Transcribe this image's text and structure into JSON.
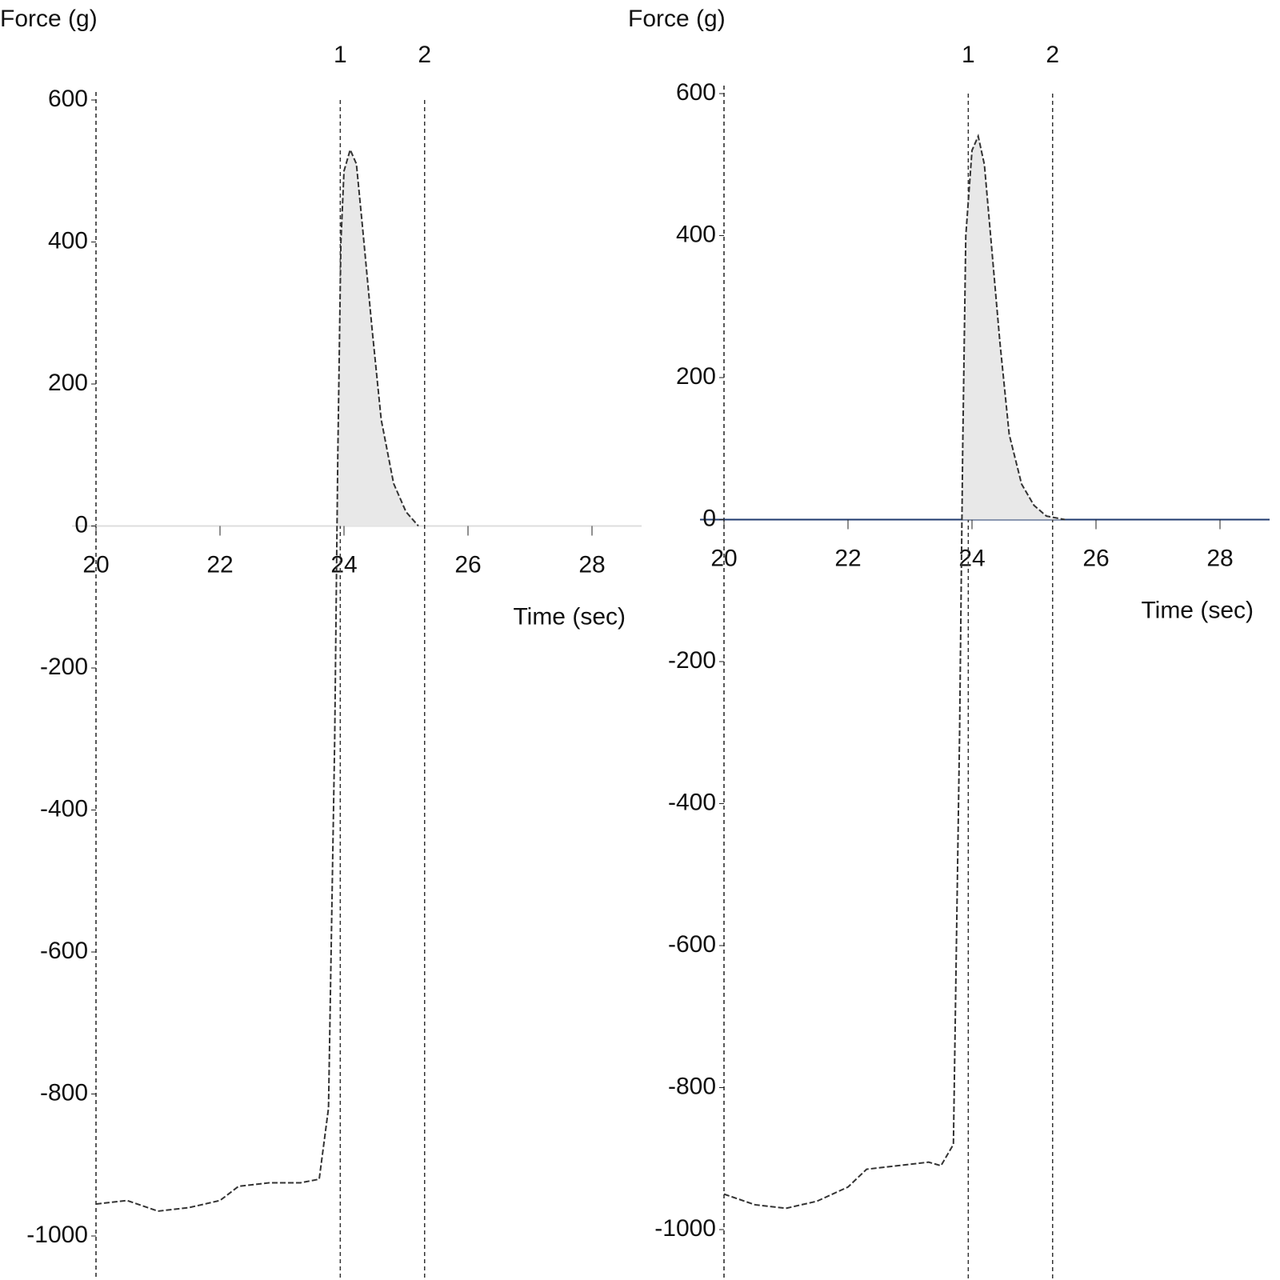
{
  "chart_data": [
    {
      "type": "line",
      "y_label": "Force (g)",
      "x_label": "Time (sec)",
      "xlim": [
        20,
        28.8
      ],
      "ylim": [
        -1000,
        600
      ],
      "xticks": [
        20,
        22,
        24,
        26,
        28
      ],
      "yticks": [
        600,
        400,
        200,
        0,
        -200,
        -400,
        -600,
        -800,
        -1000
      ],
      "x": [
        20,
        20.5,
        21,
        21.5,
        22,
        22.3,
        22.8,
        23.3,
        23.6,
        23.75,
        23.85,
        23.9,
        23.95,
        24.0,
        24.1,
        24.2,
        24.3,
        24.45,
        24.6,
        24.8,
        25.0,
        25.2
      ],
      "series": [
        {
          "color": "#333333",
          "fill": "#e8e8e8",
          "values": [
            -955,
            -950,
            -965,
            -960,
            -950,
            -930,
            -925,
            -925,
            -920,
            -820,
            -300,
            100,
            400,
            500,
            530,
            510,
            420,
            280,
            150,
            60,
            20,
            0
          ]
        }
      ],
      "markers": {
        "x": [
          23.94,
          25.3
        ],
        "labels": [
          "1",
          "2"
        ]
      }
    },
    {
      "type": "line",
      "y_label": "Force (g)",
      "x_label": "Time (sec)",
      "xlim": [
        20,
        28.8
      ],
      "ylim": [
        -1000,
        600
      ],
      "xticks": [
        20,
        22,
        24,
        26,
        28
      ],
      "yticks": [
        600,
        400,
        200,
        0,
        -200,
        -400,
        -600,
        -800,
        -1000
      ],
      "x": [
        20,
        20.5,
        21,
        21.5,
        22,
        22.3,
        22.8,
        23.3,
        23.5,
        23.7,
        23.8,
        23.85,
        23.9,
        24.0,
        24.1,
        24.2,
        24.3,
        24.45,
        24.6,
        24.8,
        25.0,
        25.2,
        25.5
      ],
      "series": [
        {
          "color": "#333333",
          "fill": "#e8e8e8",
          "values": [
            -950,
            -965,
            -970,
            -960,
            -940,
            -915,
            -910,
            -905,
            -910,
            -880,
            -300,
            100,
            400,
            520,
            540,
            500,
            400,
            250,
            120,
            50,
            20,
            5,
            0
          ]
        }
      ],
      "markers": {
        "x": [
          23.94,
          25.3
        ],
        "labels": [
          "1",
          "2"
        ]
      }
    }
  ]
}
